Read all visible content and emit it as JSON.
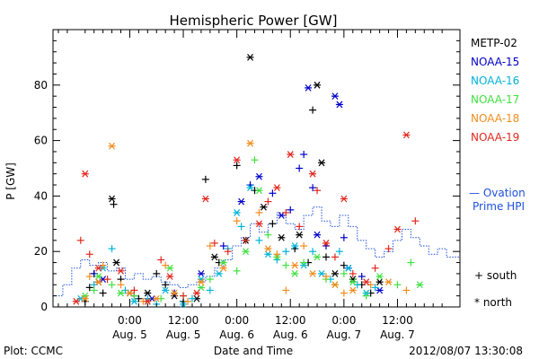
{
  "chart_data": {
    "type": "scatter",
    "title": "Hemispheric Power [GW]",
    "ylabel": "P [GW]",
    "xlabel": "Date and Time",
    "ylim": [
      0,
      100
    ],
    "xlim": [
      -8.6,
      37
    ],
    "y_ticks": [
      0,
      20,
      40,
      60,
      80
    ],
    "x_ticks": [
      {
        "x": 0,
        "time": "0:00",
        "date": "Aug. 5"
      },
      {
        "x": 6,
        "time": "12:00",
        "date": "Aug. 5"
      },
      {
        "x": 12,
        "time": "0:00",
        "date": "Aug. 6"
      },
      {
        "x": 18,
        "time": "12:00",
        "date": "Aug. 6"
      },
      {
        "x": 24,
        "time": "0:00",
        "date": "Aug. 7"
      },
      {
        "x": 30,
        "time": "12:00",
        "date": "Aug. 7"
      }
    ],
    "x_units": "hours from 2012-08-05 00:00 UT",
    "legend": {
      "placement": "right"
    },
    "marker_legend": [
      {
        "symbol": "+",
        "label": "south"
      },
      {
        "symbol": "*",
        "label": "north"
      }
    ],
    "series": [
      {
        "name": "METP-02",
        "color": "#000000",
        "points": [
          [
            -5.0,
            2,
            "+"
          ],
          [
            -4.5,
            7,
            "+"
          ],
          [
            -4.0,
            12,
            "+"
          ],
          [
            -3.5,
            9,
            "*"
          ],
          [
            -3.0,
            5,
            "+"
          ],
          [
            -2.0,
            39,
            "*"
          ],
          [
            -1.8,
            37,
            "+"
          ],
          [
            -1.5,
            16,
            "*"
          ],
          [
            -1.0,
            10,
            "+"
          ],
          [
            0.0,
            5,
            "*"
          ],
          [
            1.0,
            3,
            "+"
          ],
          [
            2.0,
            5,
            "*"
          ],
          [
            3.0,
            12,
            "+"
          ],
          [
            4.0,
            8,
            "+"
          ],
          [
            5.0,
            4,
            "*"
          ],
          [
            6.0,
            2,
            "+"
          ],
          [
            7.5,
            3,
            "*"
          ],
          [
            8.5,
            46,
            "+"
          ],
          [
            9.5,
            18,
            "*"
          ],
          [
            10.0,
            16,
            "+"
          ],
          [
            12.0,
            51,
            "+"
          ],
          [
            13.0,
            24,
            "*"
          ],
          [
            13.5,
            90,
            "*"
          ],
          [
            14.0,
            42,
            "+"
          ],
          [
            15.0,
            36,
            "*"
          ],
          [
            16.0,
            30,
            "+"
          ],
          [
            17.0,
            25,
            "*"
          ],
          [
            18.5,
            21,
            "+"
          ],
          [
            19.0,
            26,
            "*"
          ],
          [
            20.0,
            16,
            "+"
          ],
          [
            20.5,
            71,
            "+"
          ],
          [
            21.0,
            80,
            "*"
          ],
          [
            21.5,
            52,
            "*"
          ],
          [
            22.0,
            18,
            "+"
          ],
          [
            23.0,
            12,
            "*"
          ],
          [
            24.0,
            15,
            "+"
          ],
          [
            25.0,
            10,
            "*"
          ],
          [
            26.0,
            8,
            "+"
          ],
          [
            27.0,
            5,
            "+"
          ],
          [
            28.0,
            9,
            "*"
          ]
        ]
      },
      {
        "name": "NOAA-15",
        "color": "#0000c8",
        "points": [
          [
            -4.0,
            12,
            "+"
          ],
          [
            -3.0,
            10,
            "*"
          ],
          [
            0.5,
            4,
            "+"
          ],
          [
            2.5,
            3,
            "*"
          ],
          [
            5.0,
            5,
            "+"
          ],
          [
            8.0,
            12,
            "*"
          ],
          [
            10.5,
            22,
            "+"
          ],
          [
            12.5,
            38,
            "*"
          ],
          [
            13.5,
            44,
            "+"
          ],
          [
            14.5,
            47,
            "*"
          ],
          [
            16.0,
            41,
            "+"
          ],
          [
            17.0,
            33,
            "*"
          ],
          [
            18.0,
            35,
            "+"
          ],
          [
            19.0,
            50,
            "+"
          ],
          [
            19.5,
            55,
            "+"
          ],
          [
            20.0,
            79,
            "*"
          ],
          [
            20.5,
            43,
            "+"
          ],
          [
            21.0,
            26,
            "*"
          ],
          [
            22.0,
            22,
            "+"
          ],
          [
            23.0,
            76,
            "*"
          ],
          [
            23.5,
            73,
            "*"
          ],
          [
            24.0,
            25,
            "+"
          ],
          [
            24.5,
            14,
            "*"
          ],
          [
            26.0,
            11,
            "+"
          ],
          [
            28.0,
            6,
            "*"
          ]
        ]
      },
      {
        "name": "NOAA-16",
        "color": "#00b4d8",
        "points": [
          [
            -5.5,
            3,
            "*"
          ],
          [
            -4.0,
            8,
            "+"
          ],
          [
            -3.0,
            14,
            "*"
          ],
          [
            -2.0,
            21,
            "+"
          ],
          [
            -0.5,
            6,
            "+"
          ],
          [
            0.5,
            2,
            "*"
          ],
          [
            2.0,
            3,
            "+"
          ],
          [
            3.0,
            1,
            "+"
          ],
          [
            4.0,
            6,
            "*"
          ],
          [
            6.0,
            1,
            "*"
          ],
          [
            7.0,
            3,
            "+"
          ],
          [
            8.0,
            10,
            "*"
          ],
          [
            9.0,
            6,
            "+"
          ],
          [
            10.0,
            12,
            "*"
          ],
          [
            11.0,
            21,
            "+"
          ],
          [
            12.0,
            34,
            "*"
          ],
          [
            12.5,
            29,
            "+"
          ],
          [
            13.5,
            43,
            "*"
          ],
          [
            14.5,
            24,
            "+"
          ],
          [
            15.5,
            19,
            "*"
          ],
          [
            16.5,
            17,
            "+"
          ],
          [
            17.5,
            20,
            "+"
          ],
          [
            18.5,
            22,
            "*"
          ],
          [
            19.5,
            15,
            "*"
          ],
          [
            20.5,
            20,
            "+"
          ],
          [
            21.5,
            12,
            "*"
          ],
          [
            22.5,
            10,
            "+"
          ],
          [
            23.5,
            20,
            "+"
          ],
          [
            24.5,
            14,
            "*"
          ],
          [
            25.5,
            8,
            "+"
          ],
          [
            26.5,
            5,
            "*"
          ],
          [
            27.5,
            7,
            "+"
          ]
        ]
      },
      {
        "name": "NOAA-17",
        "color": "#40e040",
        "points": [
          [
            -5.0,
            4,
            "*"
          ],
          [
            -4.0,
            6,
            "+"
          ],
          [
            -3.5,
            11,
            "*"
          ],
          [
            -2.0,
            8,
            "+"
          ],
          [
            -1.0,
            5,
            "*"
          ],
          [
            0.5,
            4,
            "+"
          ],
          [
            2.0,
            2,
            "*"
          ],
          [
            3.5,
            3,
            "+"
          ],
          [
            4.5,
            14,
            "*"
          ],
          [
            6.0,
            4,
            "+"
          ],
          [
            8.0,
            7,
            "*"
          ],
          [
            9.0,
            10,
            "+"
          ],
          [
            10.5,
            16,
            "*"
          ],
          [
            12.0,
            13,
            "+"
          ],
          [
            13.0,
            20,
            "*"
          ],
          [
            14.0,
            53,
            "+"
          ],
          [
            14.5,
            42,
            "*"
          ],
          [
            15.5,
            26,
            "+"
          ],
          [
            16.5,
            18,
            "*"
          ],
          [
            17.5,
            15,
            "+"
          ],
          [
            18.5,
            12,
            "*"
          ],
          [
            19.5,
            16,
            "+"
          ],
          [
            21.0,
            18,
            "*"
          ],
          [
            22.0,
            10,
            "+"
          ],
          [
            23.0,
            8,
            "*"
          ],
          [
            24.0,
            12,
            "+"
          ],
          [
            25.0,
            9,
            "*"
          ],
          [
            26.5,
            4,
            "+"
          ],
          [
            28.0,
            11,
            "*"
          ],
          [
            30.0,
            8,
            "+"
          ],
          [
            31.5,
            16,
            "+"
          ],
          [
            32.5,
            8,
            "*"
          ]
        ]
      },
      {
        "name": "NOAA-18",
        "color": "#f08c1e",
        "points": [
          [
            -5.0,
            3,
            "*"
          ],
          [
            -4.5,
            11,
            "+"
          ],
          [
            -3.5,
            9,
            "*"
          ],
          [
            -3.0,
            15,
            "+"
          ],
          [
            -2.0,
            58,
            "*"
          ],
          [
            -1.0,
            8,
            "+"
          ],
          [
            0.0,
            5,
            "*"
          ],
          [
            1.5,
            2,
            "+"
          ],
          [
            3.0,
            3,
            "*"
          ],
          [
            4.0,
            15,
            "+"
          ],
          [
            5.0,
            5,
            "*"
          ],
          [
            6.5,
            2,
            "+"
          ],
          [
            8.0,
            9,
            "*"
          ],
          [
            9.0,
            22,
            "+"
          ],
          [
            10.5,
            14,
            "*"
          ],
          [
            12.0,
            31,
            "+"
          ],
          [
            13.5,
            59,
            "*"
          ],
          [
            14.5,
            34,
            "+"
          ],
          [
            15.5,
            21,
            "*"
          ],
          [
            16.5,
            19,
            "+"
          ],
          [
            17.5,
            6,
            "+"
          ],
          [
            18.5,
            15,
            "*"
          ],
          [
            19.5,
            22,
            "+"
          ],
          [
            20.5,
            12,
            "*"
          ],
          [
            22.0,
            11,
            "+"
          ],
          [
            23.0,
            8,
            "*"
          ],
          [
            24.0,
            5,
            "+"
          ],
          [
            25.0,
            6,
            "*"
          ],
          [
            27.0,
            8,
            "+"
          ],
          [
            29.0,
            9,
            "*"
          ],
          [
            31.0,
            6,
            "+"
          ]
        ]
      },
      {
        "name": "NOAA-19",
        "color": "#e0281e",
        "points": [
          [
            -6.0,
            2,
            "*"
          ],
          [
            -5.5,
            24,
            "+"
          ],
          [
            -5.0,
            48,
            "*"
          ],
          [
            -4.5,
            19,
            "+"
          ],
          [
            -3.5,
            14,
            "*"
          ],
          [
            -2.5,
            10,
            "+"
          ],
          [
            -1.0,
            13,
            "*"
          ],
          [
            0.5,
            6,
            "+"
          ],
          [
            2.0,
            2,
            "*"
          ],
          [
            3.5,
            17,
            "+"
          ],
          [
            4.5,
            11,
            "*"
          ],
          [
            6.0,
            4,
            "+"
          ],
          [
            7.5,
            5,
            "*"
          ],
          [
            8.5,
            39,
            "*"
          ],
          [
            9.5,
            23,
            "+"
          ],
          [
            11.0,
            20,
            "+"
          ],
          [
            12.0,
            53,
            "*"
          ],
          [
            13.0,
            24,
            "+"
          ],
          [
            14.5,
            30,
            "*"
          ],
          [
            15.5,
            38,
            "+"
          ],
          [
            16.5,
            43,
            "*"
          ],
          [
            17.5,
            34,
            "+"
          ],
          [
            18.0,
            55,
            "*"
          ],
          [
            19.0,
            29,
            "+"
          ],
          [
            20.5,
            48,
            "*"
          ],
          [
            21.0,
            42,
            "+"
          ],
          [
            22.0,
            23,
            "*"
          ],
          [
            23.0,
            18,
            "+"
          ],
          [
            24.0,
            39,
            "*"
          ],
          [
            25.0,
            12,
            "+"
          ],
          [
            26.5,
            9,
            "*"
          ],
          [
            27.5,
            14,
            "+"
          ],
          [
            29.0,
            21,
            "+"
          ],
          [
            30.0,
            28,
            "*"
          ],
          [
            31.0,
            62,
            "*"
          ],
          [
            32.0,
            31,
            "+"
          ]
        ]
      }
    ],
    "ovation": {
      "name": "Ovation Prime HPI",
      "label_line1": "— Ovation",
      "label_line2": "Prime HPI",
      "color": "#1e50dc",
      "style": "dotted-step",
      "steps": [
        [
          -8.6,
          4
        ],
        [
          -7.5,
          8
        ],
        [
          -6.5,
          14
        ],
        [
          -5.5,
          17
        ],
        [
          -4.5,
          15
        ],
        [
          -3.5,
          16
        ],
        [
          -2.5,
          13
        ],
        [
          -1.5,
          14
        ],
        [
          -0.5,
          10
        ],
        [
          0.5,
          12
        ],
        [
          1.5,
          10
        ],
        [
          2.5,
          11
        ],
        [
          3.5,
          9
        ],
        [
          4.5,
          8
        ],
        [
          5.5,
          7
        ],
        [
          6.5,
          8
        ],
        [
          7.5,
          9
        ],
        [
          8.5,
          11
        ],
        [
          9.5,
          14
        ],
        [
          10.5,
          17
        ],
        [
          11.5,
          22
        ],
        [
          12.5,
          25
        ],
        [
          13.5,
          30
        ],
        [
          14.5,
          27
        ],
        [
          15.5,
          30
        ],
        [
          16.5,
          34
        ],
        [
          17.5,
          30
        ],
        [
          18.5,
          28
        ],
        [
          19.5,
          33
        ],
        [
          20.5,
          36
        ],
        [
          21.5,
          31
        ],
        [
          22.5,
          29
        ],
        [
          23.5,
          33
        ],
        [
          24.5,
          29
        ],
        [
          25.5,
          24
        ],
        [
          26.5,
          21
        ],
        [
          27.5,
          18
        ],
        [
          28.5,
          20
        ],
        [
          29.5,
          24
        ],
        [
          30.5,
          28
        ],
        [
          31.5,
          25
        ],
        [
          32.5,
          22
        ],
        [
          33.5,
          19
        ],
        [
          34.5,
          21
        ],
        [
          35.5,
          18
        ],
        [
          37,
          18
        ]
      ]
    }
  },
  "footer": {
    "plot_credit": "Plot: CCMC",
    "timestamp": "2012/08/07 13:30:08"
  }
}
